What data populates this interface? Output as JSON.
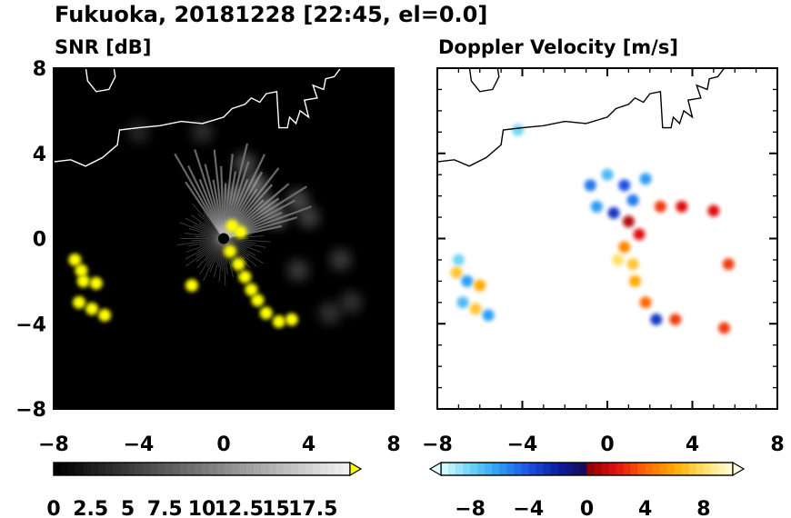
{
  "title": "Fukuoka, 20181228 [22:45, el=0.0]",
  "chart_data": [
    {
      "type": "heatmap",
      "title": "SNR [dB]",
      "xlim": [
        -8,
        8
      ],
      "ylim": [
        -8,
        8
      ],
      "xticks": [
        "−8",
        "−4",
        "0",
        "4",
        "8"
      ],
      "yticks": [
        "8",
        "4",
        "0",
        "−4",
        "−8"
      ],
      "colorbar": {
        "min": 0,
        "max": 20,
        "extend": "max",
        "tick_labels": [
          "0",
          "2.5",
          "5",
          "7.5",
          "10",
          "12.5",
          "15",
          "17.5"
        ],
        "colors": {
          "low": "#000000",
          "high": "#f0f0f0",
          "over": "#ffff00"
        }
      },
      "echoes": [
        {
          "x": -7.0,
          "y": -1.0,
          "v": 21
        },
        {
          "x": -6.7,
          "y": -1.5,
          "v": 21
        },
        {
          "x": -6.6,
          "y": -2.0,
          "v": 21
        },
        {
          "x": -6.0,
          "y": -2.1,
          "v": 21
        },
        {
          "x": -6.8,
          "y": -3.0,
          "v": 21
        },
        {
          "x": -6.2,
          "y": -3.3,
          "v": 21
        },
        {
          "x": -5.6,
          "y": -3.6,
          "v": 21
        },
        {
          "x": 0.3,
          "y": -0.6,
          "v": 21
        },
        {
          "x": 0.7,
          "y": -1.2,
          "v": 21
        },
        {
          "x": 1.0,
          "y": -1.8,
          "v": 21
        },
        {
          "x": 1.3,
          "y": -2.4,
          "v": 21
        },
        {
          "x": 1.6,
          "y": -2.9,
          "v": 21
        },
        {
          "x": 2.0,
          "y": -3.5,
          "v": 21
        },
        {
          "x": 2.6,
          "y": -3.9,
          "v": 21
        },
        {
          "x": 3.2,
          "y": -3.8,
          "v": 21
        },
        {
          "x": 0.4,
          "y": 0.6,
          "v": 21
        },
        {
          "x": 0.8,
          "y": 0.3,
          "v": 21
        },
        {
          "x": -1.5,
          "y": -2.2,
          "v": 21
        },
        {
          "x": 1.5,
          "y": 2.5,
          "v": 15
        },
        {
          "x": 2.0,
          "y": 1.5,
          "v": 14
        },
        {
          "x": 0.5,
          "y": 2.0,
          "v": 12
        },
        {
          "x": 2.5,
          "y": 1.0,
          "v": 11
        },
        {
          "x": 3.5,
          "y": 1.8,
          "v": 10
        },
        {
          "x": 4.0,
          "y": 1.0,
          "v": 9
        },
        {
          "x": 5.5,
          "y": -1.0,
          "v": 8
        },
        {
          "x": 5.0,
          "y": -3.5,
          "v": 7
        },
        {
          "x": 6.0,
          "y": -3.0,
          "v": 7
        },
        {
          "x": 3.5,
          "y": -1.5,
          "v": 8
        },
        {
          "x": -1.0,
          "y": 5.0,
          "v": 6
        },
        {
          "x": -4.0,
          "y": 5.0,
          "v": 5
        },
        {
          "x": 1.0,
          "y": 3.5,
          "v": 11
        }
      ]
    },
    {
      "type": "heatmap",
      "title": "Doppler Velocity [m/s]",
      "xlim": [
        -8,
        8
      ],
      "ylim": [
        -8,
        8
      ],
      "xticks": [
        "−8",
        "−4",
        "0",
        "4",
        "8"
      ],
      "yticks": [],
      "colorbar": {
        "min": -10,
        "max": 10,
        "extend": "both",
        "tick_labels": [
          "−8",
          "−4",
          "0",
          "4",
          "8"
        ],
        "colors": {
          "under": "#e0ffff",
          "over": "#ffffe0"
        }
      },
      "echoes": [
        {
          "x": -7.0,
          "y": -1.0,
          "v": -8
        },
        {
          "x": -7.1,
          "y": -1.6,
          "v": 7
        },
        {
          "x": -6.6,
          "y": -2.0,
          "v": -6
        },
        {
          "x": -6.0,
          "y": -2.2,
          "v": 6
        },
        {
          "x": -6.8,
          "y": -3.0,
          "v": -7
        },
        {
          "x": -6.2,
          "y": -3.3,
          "v": 7
        },
        {
          "x": -5.6,
          "y": -3.6,
          "v": -6
        },
        {
          "x": -0.8,
          "y": 2.5,
          "v": -5
        },
        {
          "x": 0.0,
          "y": 3.0,
          "v": -7
        },
        {
          "x": 0.8,
          "y": 2.5,
          "v": -4
        },
        {
          "x": -0.5,
          "y": 1.5,
          "v": -6
        },
        {
          "x": 0.3,
          "y": 1.2,
          "v": -3
        },
        {
          "x": 1.2,
          "y": 1.8,
          "v": -5
        },
        {
          "x": 1.8,
          "y": 2.8,
          "v": -6
        },
        {
          "x": 1.0,
          "y": 0.8,
          "v": 1
        },
        {
          "x": 1.5,
          "y": 0.2,
          "v": 2
        },
        {
          "x": 0.8,
          "y": -0.4,
          "v": 5
        },
        {
          "x": 1.2,
          "y": -1.2,
          "v": 7
        },
        {
          "x": 0.5,
          "y": -1.0,
          "v": 8
        },
        {
          "x": 2.5,
          "y": 1.5,
          "v": 3
        },
        {
          "x": 3.5,
          "y": 1.5,
          "v": 2
        },
        {
          "x": 5.0,
          "y": 1.3,
          "v": 2
        },
        {
          "x": 1.3,
          "y": -2.0,
          "v": 6
        },
        {
          "x": 1.8,
          "y": -3.0,
          "v": 4
        },
        {
          "x": 2.3,
          "y": -3.8,
          "v": -3
        },
        {
          "x": 3.2,
          "y": -3.8,
          "v": 3
        },
        {
          "x": 5.7,
          "y": -1.2,
          "v": 3
        },
        {
          "x": 5.5,
          "y": -4.2,
          "v": 3
        },
        {
          "x": -4.2,
          "y": 5.1,
          "v": -8
        }
      ]
    }
  ]
}
